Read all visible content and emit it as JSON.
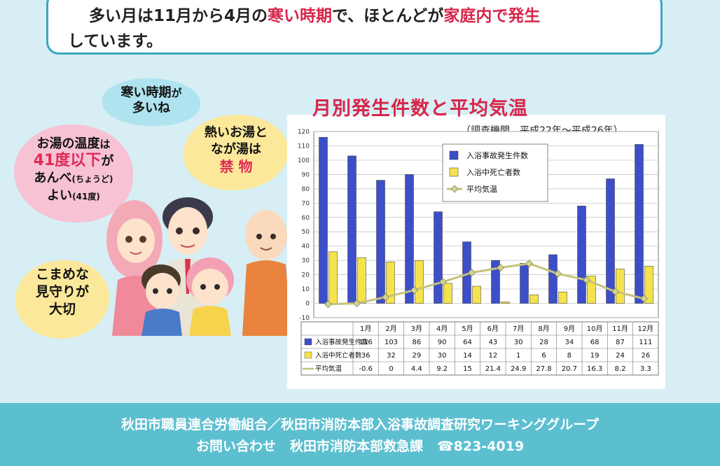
{
  "intro": {
    "line1_a": "多い月は11月から4月の",
    "line1_b": "寒い時期",
    "line1_c": "で、ほとんどが",
    "line1_d": "家庭内で発生",
    "line2": "しています。"
  },
  "bubbles": {
    "cold_1": "寒い時期",
    "cold_2": "が",
    "cold_3": "多いね",
    "temp_1a": "お湯の温度",
    "temp_1b": "は",
    "temp_2a": "41度以下",
    "temp_2b": "が",
    "temp_3a": "あんべ",
    "temp_3b": "(ちょうど)",
    "temp_4a": "よい",
    "temp_4b": "(41度)",
    "hot_1": "熱いお湯と",
    "hot_2": "なが湯は",
    "hot_3": "禁 物",
    "watch_1": "こまめな",
    "watch_2": "見守りが",
    "watch_3": "大切"
  },
  "chart_header": {
    "title": "月別発生件数と平均気温",
    "subtitle": "（調査機関　平成22年～平成26年）"
  },
  "chart_data": {
    "type": "bar",
    "categories": [
      "1月",
      "2月",
      "3月",
      "4月",
      "5月",
      "6月",
      "7月",
      "8月",
      "9月",
      "10月",
      "11月",
      "12月"
    ],
    "ylim": [
      -10,
      120
    ],
    "yticks": [
      -10,
      0,
      10,
      20,
      30,
      40,
      50,
      60,
      70,
      80,
      90,
      100,
      110,
      120
    ],
    "grid": true,
    "legend_position": "top-center",
    "series": [
      {
        "name": "入浴事故発生件数",
        "type": "bar",
        "color": "#3c4fc8",
        "values": [
          116,
          103,
          86,
          90,
          64,
          43,
          30,
          28,
          34,
          68,
          87,
          111
        ],
        "labels": [
          "116",
          "103",
          "86",
          "90",
          "64",
          "43",
          "30",
          "28",
          "34",
          "68",
          "87",
          "111"
        ]
      },
      {
        "name": "入浴中死亡者数",
        "type": "bar",
        "color": "#f4e34c",
        "values": [
          36,
          32,
          29,
          30,
          14,
          12,
          1,
          6,
          8,
          19,
          24,
          26
        ],
        "labels": [
          "36",
          "32",
          "29",
          "30",
          "14",
          "12",
          "1",
          "6",
          "8",
          "19",
          "24",
          "26"
        ]
      },
      {
        "name": "平均気温",
        "type": "line",
        "color": "#c5c37a",
        "values": [
          -0.6,
          0,
          4.4,
          9.2,
          15,
          21.4,
          24.9,
          27.8,
          20.7,
          16.3,
          8.2,
          3.3
        ],
        "labels": [
          "-0.6",
          "0",
          "4.4",
          "9.2",
          "15",
          "21.4",
          "24.9",
          "27.8",
          "20.7",
          "16.3",
          "8.2",
          "3.3"
        ]
      }
    ]
  },
  "footer": {
    "line1": "秋田市職員連合労働組合／秋田市消防本部入浴事故調査研究ワーキンググループ",
    "line2_a": "お問い合わせ",
    "line2_b": "秋田市消防本部救急課",
    "line2_c": "☎823-4019"
  }
}
